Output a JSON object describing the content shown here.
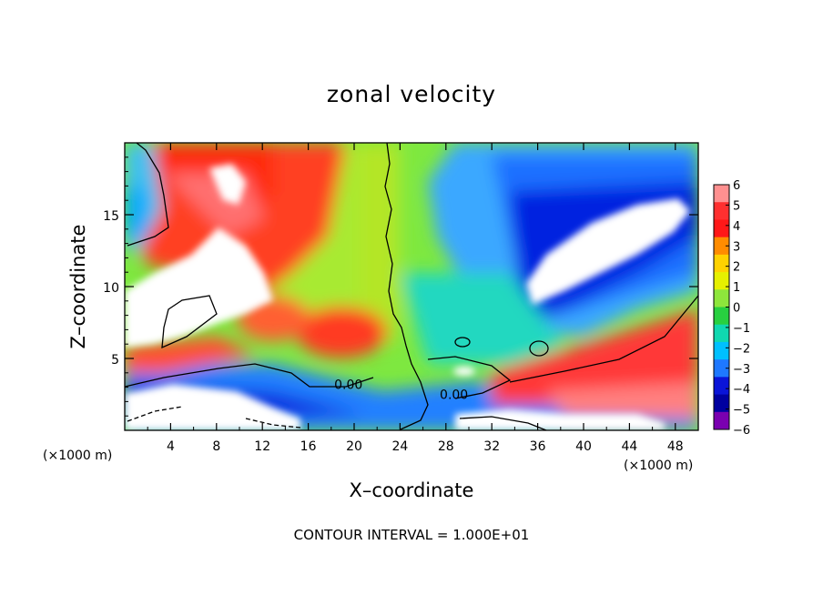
{
  "chart_data": {
    "type": "heatmap",
    "title": "zonal velocity",
    "xlabel": "X–coordinate",
    "ylabel": "Z–coordinate",
    "x_unit_label": "(×1000 m)",
    "y_unit_label": "(×1000 m)",
    "xlim": [
      0,
      50
    ],
    "ylim": [
      0,
      20
    ],
    "x_ticks": [
      4,
      8,
      12,
      16,
      20,
      24,
      28,
      32,
      36,
      40,
      44,
      48
    ],
    "x_tick_labels": [
      "4",
      "8",
      "12",
      "16",
      "20",
      "24",
      "28",
      "32",
      "36",
      "40",
      "44",
      "48"
    ],
    "y_ticks": [
      5,
      10,
      15
    ],
    "y_tick_labels": [
      "5",
      "10",
      "15"
    ],
    "colorbar": {
      "levels": [
        6,
        5,
        4,
        3,
        2,
        1,
        0,
        -1,
        -2,
        -3,
        -4,
        -5,
        -6
      ],
      "labels": [
        "6",
        "5",
        "4",
        "3",
        "2",
        "1",
        "0",
        "−1",
        "−2",
        "−3",
        "−4",
        "−5",
        "−6"
      ],
      "colors": [
        "#ff9090",
        "#ff3030",
        "#ff1818",
        "#ff8c00",
        "#ffd200",
        "#e6f000",
        "#8ee63c",
        "#28d040",
        "#10d8b0",
        "#00c0ff",
        "#1e78ff",
        "#0a14d8",
        "#0000a0",
        "#7a00b0"
      ]
    },
    "contour_labels": [
      {
        "text": "0.00",
        "x": 19.5,
        "z": 3.2
      },
      {
        "text": "0.00",
        "x": 28.7,
        "z": 2.5
      }
    ],
    "contour_interval_text": "CONTOUR INTERVAL = 1.000E+01"
  }
}
